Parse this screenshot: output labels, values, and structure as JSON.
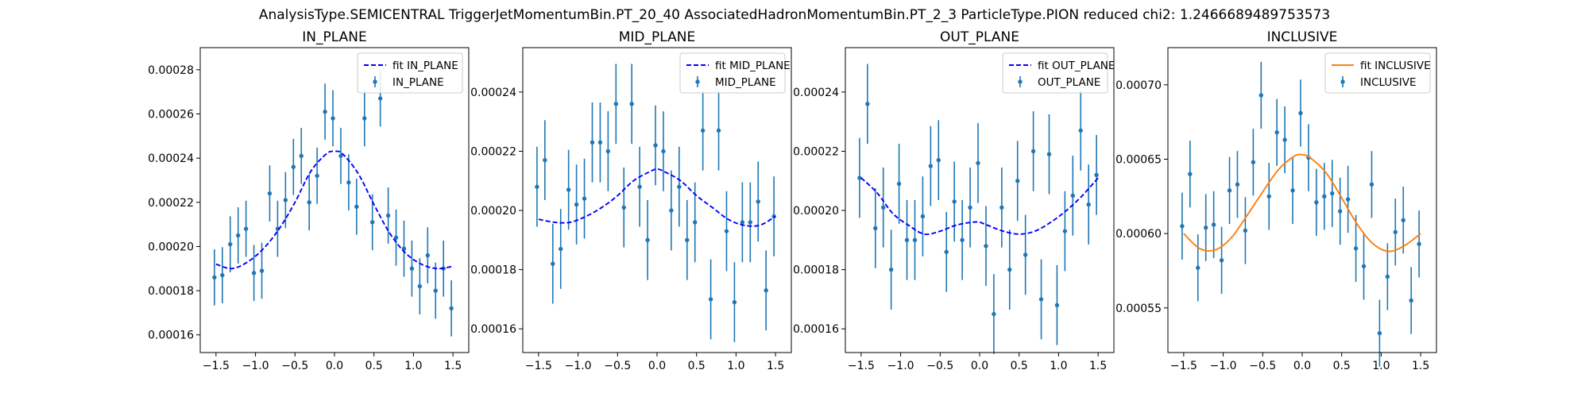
{
  "figure": {
    "suptitle": "AnalysisType.SEMICENTRAL TriggerJetMomentumBin.PT_20_40 AssociatedHadronMomentumBin.PT_2_3 ParticleType.PION reduced chi2: 1.2466689489753573"
  },
  "colors": {
    "data": "#1f77b4",
    "fit_plane": "#0000ff",
    "fit_inclusive": "#ff7f0e"
  },
  "chart_data": [
    {
      "type": "scatter",
      "title": "IN_PLANE",
      "xlim": [
        -1.7,
        1.7
      ],
      "ylim": [
        0.000152,
        0.00029
      ],
      "xticks": [
        -1.5,
        -1.0,
        -0.5,
        0.0,
        0.5,
        1.0,
        1.5
      ],
      "xtick_labels": [
        "−1.5",
        "−1.0",
        "−0.5",
        "0.0",
        "0.5",
        "1.0",
        "1.5"
      ],
      "yticks": [
        0.00016,
        0.00018,
        0.0002,
        0.00022,
        0.00024,
        0.00026,
        0.00028
      ],
      "ytick_labels": [
        "0.00016",
        "0.00018",
        "0.00020",
        "0.00022",
        "0.00024",
        "0.00026",
        "0.00028"
      ],
      "legend": {
        "position": "upper right",
        "fit_label": "fit IN_PLANE",
        "data_label": "IN_PLANE"
      },
      "fit": {
        "style": "dashed",
        "color": "#0000ff",
        "x": [
          -1.5,
          -1.3,
          -1.1,
          -0.9,
          -0.7,
          -0.5,
          -0.3,
          -0.1,
          0.0,
          0.1,
          0.3,
          0.5,
          0.7,
          0.9,
          1.1,
          1.3,
          1.5
        ],
        "y": [
          0.000192,
          0.00019,
          0.000193,
          0.000199,
          0.000208,
          0.00022,
          0.000234,
          0.000242,
          0.000243,
          0.000242,
          0.000233,
          0.000219,
          0.000206,
          0.000197,
          0.000192,
          0.00019,
          0.000191
        ]
      },
      "series": [
        {
          "name": "IN_PLANE",
          "x": [
            -1.52,
            -1.42,
            -1.32,
            -1.22,
            -1.12,
            -1.02,
            -0.92,
            -0.82,
            -0.72,
            -0.62,
            -0.52,
            -0.42,
            -0.32,
            -0.22,
            -0.12,
            -0.02,
            0.08,
            0.18,
            0.28,
            0.38,
            0.48,
            0.58,
            0.68,
            0.78,
            0.88,
            0.98,
            1.08,
            1.18,
            1.28,
            1.38,
            1.48
          ],
          "y": [
            0.000186,
            0.000187,
            0.000201,
            0.000205,
            0.000208,
            0.000188,
            0.000189,
            0.000224,
            0.000208,
            0.000221,
            0.000236,
            0.000241,
            0.00022,
            0.000232,
            0.000261,
            0.000258,
            0.000241,
            0.000229,
            0.000218,
            0.000258,
            0.000211,
            0.000267,
            0.000214,
            0.000204,
            0.000199,
            0.00019,
            0.000182,
            0.000196,
            0.00018,
            0.00019,
            0.000172
          ],
          "yerr": [
            1.27e-05,
            1.27e-05,
            1.27e-05,
            1.27e-05,
            1.27e-05,
            1.27e-05,
            1.27e-05,
            1.27e-05,
            1.27e-05,
            1.27e-05,
            1.27e-05,
            1.27e-05,
            1.27e-05,
            1.27e-05,
            1.27e-05,
            1.27e-05,
            1.27e-05,
            1.27e-05,
            1.27e-05,
            1.27e-05,
            1.27e-05,
            1.27e-05,
            1.27e-05,
            1.27e-05,
            1.27e-05,
            1.27e-05,
            1.27e-05,
            1.27e-05,
            1.27e-05,
            1.27e-05,
            1.27e-05
          ]
        }
      ]
    },
    {
      "type": "scatter",
      "title": "MID_PLANE",
      "xlim": [
        -1.7,
        1.7
      ],
      "ylim": [
        0.000152,
        0.000255
      ],
      "xticks": [
        -1.5,
        -1.0,
        -0.5,
        0.0,
        0.5,
        1.0,
        1.5
      ],
      "xtick_labels": [
        "−1.5",
        "−1.0",
        "−0.5",
        "0.0",
        "0.5",
        "1.0",
        "1.5"
      ],
      "yticks": [
        0.00016,
        0.00018,
        0.0002,
        0.00022,
        0.00024
      ],
      "ytick_labels": [
        "0.00016",
        "0.00018",
        "0.00020",
        "0.00022",
        "0.00024"
      ],
      "legend": {
        "position": "upper right",
        "fit_label": "fit MID_PLANE",
        "data_label": "MID_PLANE"
      },
      "fit": {
        "style": "dashed",
        "color": "#0000ff",
        "x": [
          -1.5,
          -1.3,
          -1.1,
          -0.9,
          -0.7,
          -0.5,
          -0.3,
          -0.1,
          0.0,
          0.1,
          0.3,
          0.5,
          0.7,
          0.9,
          1.1,
          1.3,
          1.5
        ],
        "y": [
          0.000197,
          0.000196,
          0.000196,
          0.000198,
          0.000201,
          0.000205,
          0.00021,
          0.000213,
          0.000214,
          0.000213,
          0.00021,
          0.000205,
          0.000201,
          0.000197,
          0.000195,
          0.000195,
          0.000198
        ]
      },
      "series": [
        {
          "name": "MID_PLANE",
          "x": [
            -1.52,
            -1.42,
            -1.32,
            -1.22,
            -1.12,
            -1.02,
            -0.92,
            -0.82,
            -0.72,
            -0.62,
            -0.52,
            -0.42,
            -0.32,
            -0.22,
            -0.12,
            -0.02,
            0.08,
            0.18,
            0.28,
            0.38,
            0.48,
            0.58,
            0.68,
            0.78,
            0.88,
            0.98,
            1.08,
            1.18,
            1.28,
            1.38,
            1.48
          ],
          "y": [
            0.000208,
            0.000217,
            0.000182,
            0.000187,
            0.000207,
            0.000202,
            0.000204,
            0.000223,
            0.000223,
            0.00022,
            0.000236,
            0.000201,
            0.000236,
            0.000208,
            0.00019,
            0.000222,
            0.00022,
            0.0002,
            0.000208,
            0.00019,
            0.000196,
            0.000227,
            0.00017,
            0.000227,
            0.000193,
            0.000169,
            0.000196,
            0.000196,
            0.000203,
            0.000173,
            0.000198
          ],
          "yerr": [
            1.35e-05,
            1.35e-05,
            1.35e-05,
            1.35e-05,
            1.35e-05,
            1.35e-05,
            1.35e-05,
            1.35e-05,
            1.35e-05,
            1.35e-05,
            1.35e-05,
            1.35e-05,
            1.35e-05,
            1.35e-05,
            1.35e-05,
            1.35e-05,
            1.35e-05,
            1.35e-05,
            1.35e-05,
            1.35e-05,
            1.35e-05,
            1.35e-05,
            1.35e-05,
            1.35e-05,
            1.35e-05,
            1.35e-05,
            1.35e-05,
            1.35e-05,
            1.35e-05,
            1.35e-05,
            1.35e-05
          ]
        }
      ]
    },
    {
      "type": "scatter",
      "title": "OUT_PLANE",
      "xlim": [
        -1.7,
        1.7
      ],
      "ylim": [
        0.000152,
        0.000255
      ],
      "xticks": [
        -1.5,
        -1.0,
        -0.5,
        0.0,
        0.5,
        1.0,
        1.5
      ],
      "xtick_labels": [
        "−1.5",
        "−1.0",
        "−0.5",
        "0.0",
        "0.5",
        "1.0",
        "1.5"
      ],
      "yticks": [
        0.00016,
        0.00018,
        0.0002,
        0.00022,
        0.00024
      ],
      "ytick_labels": [
        "0.00016",
        "0.00018",
        "0.00020",
        "0.00022",
        "0.00024"
      ],
      "legend": {
        "position": "upper right",
        "fit_label": "fit OUT_PLANE",
        "data_label": "OUT_PLANE"
      },
      "fit": {
        "style": "dashed",
        "color": "#0000ff",
        "x": [
          -1.5,
          -1.3,
          -1.1,
          -0.9,
          -0.7,
          -0.5,
          -0.3,
          -0.1,
          0.0,
          0.1,
          0.3,
          0.5,
          0.7,
          0.9,
          1.1,
          1.3,
          1.5
        ],
        "y": [
          0.000211,
          0.000206,
          0.000199,
          0.000195,
          0.000192,
          0.000193,
          0.000195,
          0.000196,
          0.000196,
          0.000195,
          0.000193,
          0.000192,
          0.000193,
          0.000196,
          0.0002,
          0.000205,
          0.000211
        ]
      },
      "series": [
        {
          "name": "OUT_PLANE",
          "x": [
            -1.52,
            -1.42,
            -1.32,
            -1.22,
            -1.12,
            -1.02,
            -0.92,
            -0.82,
            -0.72,
            -0.62,
            -0.52,
            -0.42,
            -0.32,
            -0.22,
            -0.12,
            -0.02,
            0.08,
            0.18,
            0.28,
            0.38,
            0.48,
            0.58,
            0.68,
            0.78,
            0.88,
            0.98,
            1.08,
            1.18,
            1.28,
            1.38,
            1.48
          ],
          "y": [
            0.000211,
            0.000236,
            0.000194,
            0.000201,
            0.00018,
            0.000209,
            0.00019,
            0.00019,
            0.000198,
            0.000215,
            0.000217,
            0.000186,
            0.000203,
            0.00019,
            0.000201,
            0.000216,
            0.000188,
            0.000165,
            0.000201,
            0.00018,
            0.00021,
            0.000185,
            0.00022,
            0.00017,
            0.000219,
            0.000168,
            0.000193,
            0.000205,
            0.000227,
            0.000202,
            0.000212
          ],
          "yerr": [
            1.35e-05,
            1.35e-05,
            1.35e-05,
            1.35e-05,
            1.35e-05,
            1.35e-05,
            1.35e-05,
            1.35e-05,
            1.35e-05,
            1.35e-05,
            1.35e-05,
            1.35e-05,
            1.35e-05,
            1.35e-05,
            1.35e-05,
            1.35e-05,
            1.35e-05,
            1.35e-05,
            1.35e-05,
            1.35e-05,
            1.35e-05,
            1.35e-05,
            1.35e-05,
            1.35e-05,
            1.35e-05,
            1.35e-05,
            1.35e-05,
            1.35e-05,
            1.35e-05,
            1.35e-05,
            1.35e-05
          ]
        }
      ]
    },
    {
      "type": "scatter",
      "title": "INCLUSIVE",
      "xlim": [
        -1.7,
        1.7
      ],
      "ylim": [
        0.00052,
        0.000725
      ],
      "xticks": [
        -1.5,
        -1.0,
        -0.5,
        0.0,
        0.5,
        1.0,
        1.5
      ],
      "xtick_labels": [
        "−1.5",
        "−1.0",
        "−0.5",
        "0.0",
        "0.5",
        "1.0",
        "1.5"
      ],
      "yticks": [
        0.00055,
        0.0006,
        0.00065,
        0.0007
      ],
      "ytick_labels": [
        "0.00055",
        "0.00060",
        "0.00065",
        "0.00070"
      ],
      "legend": {
        "position": "upper right",
        "fit_label": "fit INCLUSIVE",
        "data_label": "INCLUSIVE"
      },
      "fit": {
        "style": "solid",
        "color": "#ff7f0e",
        "x": [
          -1.5,
          -1.3,
          -1.1,
          -0.9,
          -0.7,
          -0.5,
          -0.3,
          -0.1,
          0.0,
          0.1,
          0.3,
          0.5,
          0.7,
          0.9,
          1.1,
          1.3,
          1.5
        ],
        "y": [
          0.0006,
          0.00059,
          0.000589,
          0.000597,
          0.000612,
          0.000628,
          0.000643,
          0.000652,
          0.000653,
          0.000651,
          0.000641,
          0.000624,
          0.000606,
          0.000593,
          0.000588,
          0.000592,
          0.0006
        ]
      },
      "series": [
        {
          "name": "INCLUSIVE",
          "x": [
            -1.52,
            -1.42,
            -1.32,
            -1.22,
            -1.12,
            -1.02,
            -0.92,
            -0.82,
            -0.72,
            -0.62,
            -0.52,
            -0.42,
            -0.32,
            -0.22,
            -0.12,
            -0.02,
            0.08,
            0.18,
            0.28,
            0.38,
            0.48,
            0.58,
            0.68,
            0.78,
            0.88,
            0.98,
            1.08,
            1.18,
            1.28,
            1.38,
            1.48
          ],
          "y": [
            0.000605,
            0.00064,
            0.000577,
            0.000604,
            0.000606,
            0.000582,
            0.000629,
            0.000633,
            0.000602,
            0.000648,
            0.000693,
            0.000625,
            0.000668,
            0.000663,
            0.000629,
            0.000681,
            0.000651,
            0.000621,
            0.000625,
            0.000627,
            0.000615,
            0.000623,
            0.00059,
            0.000578,
            0.000633,
            0.000533,
            0.000571,
            0.000601,
            0.000609,
            0.000555,
            0.000593
          ],
          "yerr": [
            2.25e-05,
            2.25e-05,
            2.25e-05,
            2.25e-05,
            2.25e-05,
            2.25e-05,
            2.25e-05,
            2.25e-05,
            2.25e-05,
            2.25e-05,
            2.25e-05,
            2.25e-05,
            2.25e-05,
            2.25e-05,
            2.25e-05,
            2.25e-05,
            2.25e-05,
            2.25e-05,
            2.25e-05,
            2.25e-05,
            2.25e-05,
            2.25e-05,
            2.25e-05,
            2.25e-05,
            2.25e-05,
            2.25e-05,
            2.25e-05,
            2.25e-05,
            2.25e-05,
            2.25e-05,
            2.25e-05
          ]
        }
      ]
    }
  ]
}
